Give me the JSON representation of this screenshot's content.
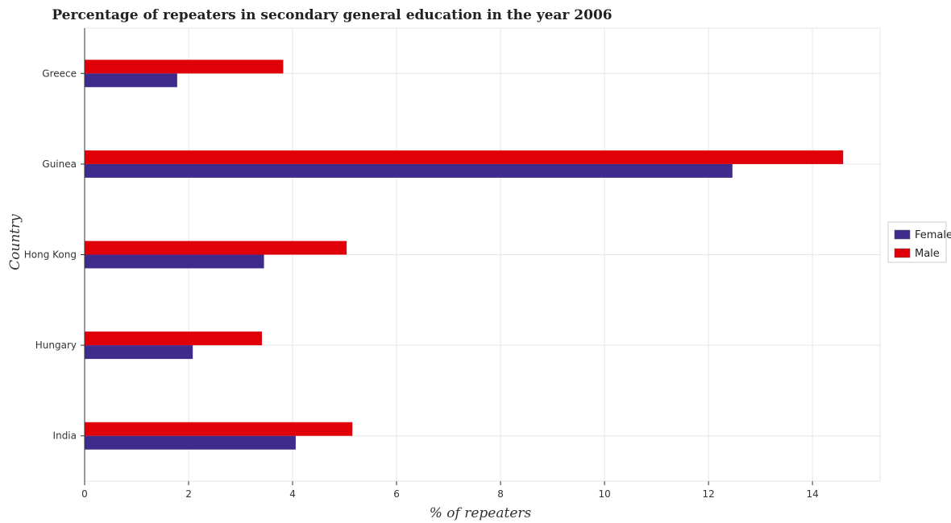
{
  "chart_data": {
    "type": "bar",
    "orientation": "horizontal",
    "title": "Percentage of repeaters in secondary general education in the year 2006",
    "xlabel": "% of repeaters",
    "ylabel": "Country",
    "categories": [
      "Greece",
      "Guinea",
      "Hong Kong",
      "Hungary",
      "India"
    ],
    "series": [
      {
        "name": "Female",
        "color": "#3f2b8c",
        "values": [
          1.78,
          12.46,
          3.45,
          2.08,
          4.06
        ]
      },
      {
        "name": "Male",
        "color": "#e0000a",
        "values": [
          3.82,
          14.59,
          5.04,
          3.41,
          5.15
        ]
      }
    ],
    "xlim": [
      0,
      15.3
    ],
    "xticks": [
      0,
      2,
      4,
      6,
      8,
      10,
      12,
      14
    ],
    "xtick_labels": [
      "0",
      "2",
      "4",
      "6",
      "8",
      "10",
      "12",
      "14"
    ],
    "grid": true,
    "legend_position": "right"
  }
}
